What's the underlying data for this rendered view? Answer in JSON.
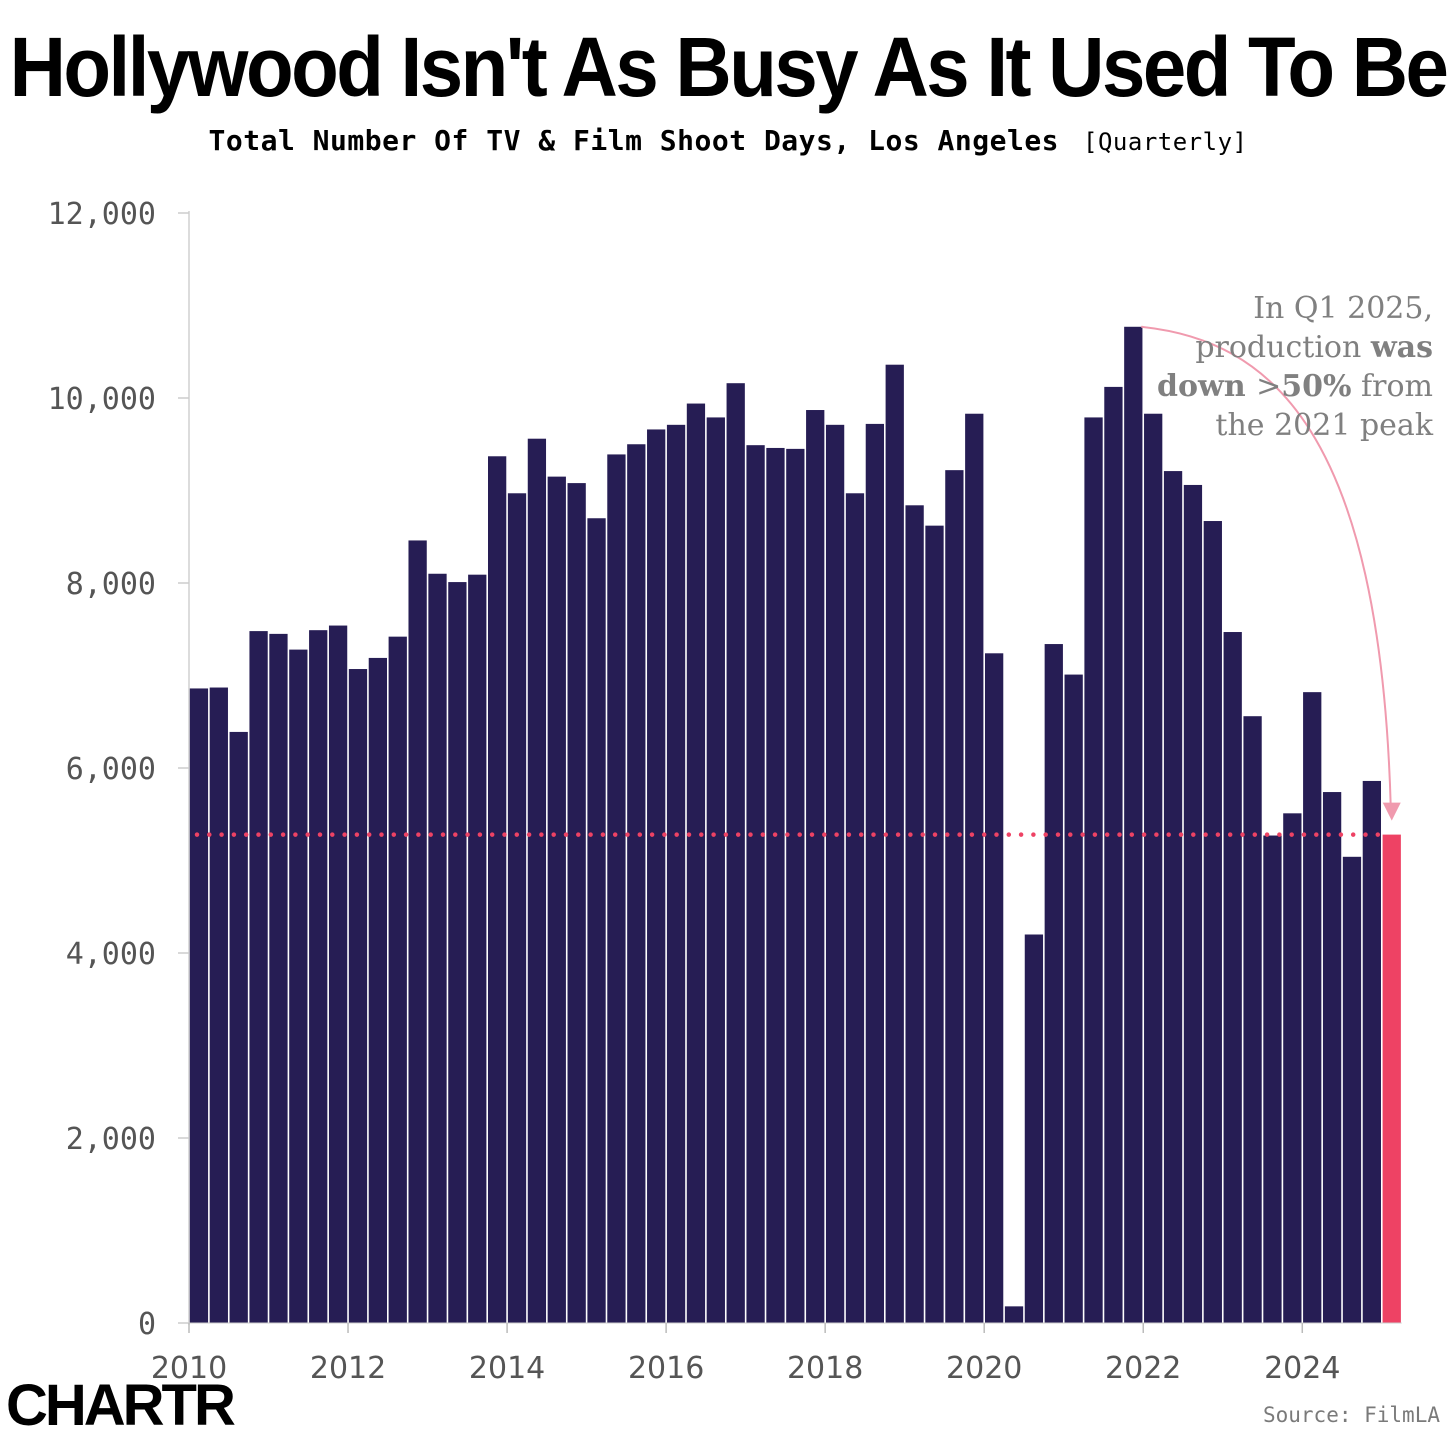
{
  "header": {
    "title": "Hollywood Isn't As Busy As It Used To Be",
    "subtitle": "Total Number Of TV & Film Shoot Days, Los Angeles",
    "frequency": "[Quarterly]"
  },
  "footer": {
    "logo": "CHARTR",
    "source": "Source: FilmLA"
  },
  "annotation": {
    "line1": "In Q1 2025,",
    "line2_plain": "production ",
    "line2_bold": "was",
    "line3_bold_a": "down ",
    "line3_plain": ">",
    "line3_bold_b": "50%",
    "line3_tail": " from",
    "line4": "the 2021 peak"
  },
  "colors": {
    "bar": "#261d54",
    "highlight": "#ee4264",
    "annotation_line": "#f09aae",
    "axis_text": "#555555",
    "annotation_text": "#808080"
  },
  "chart_data": {
    "type": "bar",
    "title": "Hollywood Isn't As Busy As It Used To Be",
    "subtitle": "Total Number Of TV & Film Shoot Days, Los Angeles [Quarterly]",
    "xlabel": "",
    "ylabel": "",
    "ylim": [
      0,
      12000
    ],
    "yticks": [
      0,
      2000,
      4000,
      6000,
      8000,
      10000,
      12000
    ],
    "ytick_labels": [
      "0",
      "2,000",
      "4,000",
      "6,000",
      "8,000",
      "10,000",
      "12,000"
    ],
    "xtick_years": [
      2010,
      2012,
      2014,
      2016,
      2018,
      2020,
      2022,
      2024
    ],
    "xtick_labels": [
      "2010",
      "2012",
      "2014",
      "2016",
      "2018",
      "2020",
      "2022",
      "2024"
    ],
    "start": "2010 Q1",
    "end": "2025 Q1",
    "highlight_period": "2025 Q1",
    "reference_line": 5280,
    "values": [
      6860,
      6870,
      6390,
      7480,
      7450,
      7280,
      7490,
      7540,
      7070,
      7190,
      7420,
      8460,
      8100,
      8010,
      8090,
      9370,
      8970,
      9560,
      9150,
      9080,
      8700,
      9390,
      9500,
      9660,
      9710,
      9940,
      9790,
      10160,
      9490,
      9460,
      9450,
      9870,
      9710,
      8970,
      9720,
      10360,
      8840,
      8620,
      9220,
      9830,
      7240,
      180,
      4200,
      7340,
      7010,
      9790,
      10120,
      10770,
      9830,
      9210,
      9060,
      8670,
      7470,
      6560,
      5270,
      5510,
      6820,
      5740,
      5040,
      5860,
      5280
    ]
  }
}
